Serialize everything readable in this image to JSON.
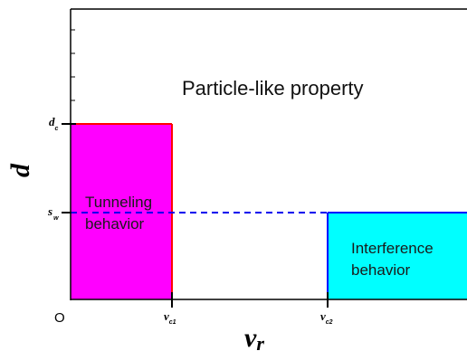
{
  "diagram": {
    "x_axis_label": {
      "main": "v",
      "sub": "r"
    },
    "y_axis_label": "d",
    "origin_label": "O",
    "x_ticks": [
      {
        "main": "v",
        "sub": "c1"
      },
      {
        "main": "v",
        "sub": "c2"
      }
    ],
    "y_ticks": [
      {
        "main": "d",
        "sub": "c"
      },
      {
        "main": "s",
        "sub": "w"
      }
    ],
    "regions": {
      "particle": {
        "text": "Particle-like property"
      },
      "tunneling": {
        "line1": "Tunneling",
        "line2": "behavior",
        "fill": "#ff00ff",
        "stroke": "#ff0000"
      },
      "interference": {
        "line1": "Interference",
        "line2": "behavior",
        "fill": "#00ffff",
        "stroke": "#0000ff"
      }
    },
    "dashed_line_color": "#0000ee"
  }
}
